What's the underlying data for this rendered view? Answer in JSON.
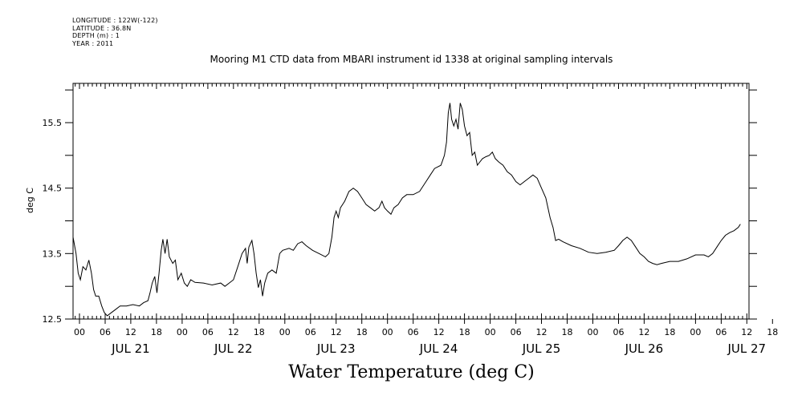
{
  "header": {
    "lines": [
      "LONGITUDE : 122W(-122)",
      "LATITUDE : 36.8N",
      "DEPTH (m) : 1",
      "YEAR : 2011"
    ]
  },
  "chart_data": {
    "type": "line",
    "title": "Mooring M1 CTD data from MBARI instrument id 1338 at original sampling intervals",
    "caption": "Water Temperature (deg C)",
    "ylabel": "deg C",
    "xlabel": "",
    "ylim": [
      12.5,
      16.1
    ],
    "yticks": [
      12.5,
      13.5,
      14.5,
      15.5
    ],
    "hour_ticks": [
      "00",
      "06",
      "12",
      "18",
      "00",
      "06",
      "12",
      "18",
      "00",
      "06",
      "12",
      "18",
      "00",
      "06",
      "12",
      "18",
      "00",
      "06",
      "12",
      "18",
      "00",
      "06",
      "12",
      "18",
      "00",
      "06",
      "12",
      "18"
    ],
    "day_labels": [
      "JUL 21",
      "JUL 22",
      "JUL 23",
      "JUL 24",
      "JUL 25",
      "JUL 26",
      "JUL 27"
    ],
    "grid": false,
    "series": [
      {
        "values_hours_since_jul21": [
          [
            -1.5,
            13.75
          ],
          [
            -0.8,
            13.5
          ],
          [
            -0.3,
            13.2
          ],
          [
            0.2,
            13.1
          ],
          [
            0.8,
            13.3
          ],
          [
            1.5,
            13.25
          ],
          [
            2.2,
            13.4
          ],
          [
            2.8,
            13.2
          ],
          [
            3.3,
            12.95
          ],
          [
            3.8,
            12.85
          ],
          [
            4.5,
            12.85
          ],
          [
            5.2,
            12.7
          ],
          [
            5.8,
            12.6
          ],
          [
            6.5,
            12.55
          ],
          [
            7.5,
            12.6
          ],
          [
            8.5,
            12.65
          ],
          [
            9.5,
            12.7
          ],
          [
            11,
            12.7
          ],
          [
            12.5,
            12.72
          ],
          [
            14,
            12.7
          ],
          [
            15,
            12.75
          ],
          [
            16,
            12.78
          ],
          [
            16.5,
            12.9
          ],
          [
            17,
            13.05
          ],
          [
            17.6,
            13.15
          ],
          [
            18.1,
            12.9
          ],
          [
            18.6,
            13.2
          ],
          [
            19.1,
            13.55
          ],
          [
            19.5,
            13.72
          ],
          [
            20,
            13.5
          ],
          [
            20.5,
            13.72
          ],
          [
            21,
            13.45
          ],
          [
            21.8,
            13.35
          ],
          [
            22.4,
            13.4
          ],
          [
            23,
            13.1
          ],
          [
            23.8,
            13.2
          ],
          [
            24.5,
            13.05
          ],
          [
            25.2,
            13.0
          ],
          [
            26,
            13.1
          ],
          [
            27,
            13.06
          ],
          [
            29,
            13.05
          ],
          [
            31,
            13.02
          ],
          [
            33,
            13.05
          ],
          [
            34,
            13.0
          ],
          [
            35,
            13.05
          ],
          [
            36,
            13.1
          ],
          [
            37,
            13.3
          ],
          [
            38,
            13.5
          ],
          [
            38.8,
            13.58
          ],
          [
            39.2,
            13.35
          ],
          [
            39.6,
            13.6
          ],
          [
            40.3,
            13.7
          ],
          [
            40.8,
            13.5
          ],
          [
            41.3,
            13.2
          ],
          [
            41.8,
            12.98
          ],
          [
            42.3,
            13.1
          ],
          [
            42.8,
            12.85
          ],
          [
            43.3,
            13.05
          ],
          [
            44,
            13.2
          ],
          [
            45,
            13.25
          ],
          [
            46,
            13.2
          ],
          [
            46.8,
            13.5
          ],
          [
            47.5,
            13.55
          ],
          [
            49,
            13.58
          ],
          [
            50,
            13.55
          ],
          [
            51,
            13.65
          ],
          [
            52,
            13.68
          ],
          [
            53,
            13.62
          ],
          [
            54.5,
            13.55
          ],
          [
            56,
            13.5
          ],
          [
            57.5,
            13.45
          ],
          [
            58.3,
            13.5
          ],
          [
            59,
            13.75
          ],
          [
            59.5,
            14.05
          ],
          [
            60,
            14.15
          ],
          [
            60.5,
            14.05
          ],
          [
            61,
            14.2
          ],
          [
            62,
            14.3
          ],
          [
            63,
            14.45
          ],
          [
            64,
            14.5
          ],
          [
            65,
            14.45
          ],
          [
            66,
            14.35
          ],
          [
            67,
            14.25
          ],
          [
            68,
            14.2
          ],
          [
            69,
            14.15
          ],
          [
            70,
            14.2
          ],
          [
            70.7,
            14.3
          ],
          [
            71.3,
            14.2
          ],
          [
            72,
            14.15
          ],
          [
            72.8,
            14.1
          ],
          [
            73.5,
            14.2
          ],
          [
            74.5,
            14.25
          ],
          [
            75.5,
            14.35
          ],
          [
            76.5,
            14.4
          ],
          [
            78,
            14.4
          ],
          [
            79.5,
            14.45
          ],
          [
            81,
            14.6
          ],
          [
            82,
            14.7
          ],
          [
            83,
            14.8
          ],
          [
            84.5,
            14.85
          ],
          [
            85.3,
            15.0
          ],
          [
            85.8,
            15.2
          ],
          [
            86.2,
            15.65
          ],
          [
            86.6,
            15.8
          ],
          [
            87,
            15.55
          ],
          [
            87.5,
            15.45
          ],
          [
            88,
            15.55
          ],
          [
            88.5,
            15.4
          ],
          [
            89,
            15.8
          ],
          [
            89.5,
            15.7
          ],
          [
            90,
            15.45
          ],
          [
            90.6,
            15.3
          ],
          [
            91.2,
            15.35
          ],
          [
            91.8,
            15.0
          ],
          [
            92.4,
            15.05
          ],
          [
            93,
            14.85
          ],
          [
            93.6,
            14.9
          ],
          [
            94.2,
            14.95
          ],
          [
            95,
            14.98
          ],
          [
            95.8,
            15.0
          ],
          [
            96.5,
            15.05
          ],
          [
            97.2,
            14.95
          ],
          [
            98,
            14.9
          ],
          [
            99,
            14.85
          ],
          [
            100,
            14.75
          ],
          [
            101,
            14.7
          ],
          [
            102,
            14.6
          ],
          [
            103,
            14.55
          ],
          [
            104,
            14.6
          ],
          [
            105,
            14.65
          ],
          [
            106,
            14.7
          ],
          [
            107,
            14.65
          ],
          [
            108,
            14.5
          ],
          [
            109,
            14.35
          ],
          [
            110,
            14.05
          ],
          [
            110.7,
            13.9
          ],
          [
            111.3,
            13.7
          ],
          [
            112,
            13.72
          ],
          [
            113,
            13.68
          ],
          [
            115,
            13.62
          ],
          [
            117,
            13.58
          ],
          [
            119,
            13.52
          ],
          [
            121,
            13.5
          ],
          [
            123,
            13.52
          ],
          [
            125,
            13.55
          ],
          [
            126,
            13.62
          ],
          [
            127,
            13.7
          ],
          [
            128,
            13.75
          ],
          [
            129,
            13.7
          ],
          [
            130,
            13.6
          ],
          [
            131,
            13.5
          ],
          [
            132,
            13.45
          ],
          [
            133,
            13.38
          ],
          [
            134,
            13.35
          ],
          [
            135,
            13.33
          ],
          [
            136,
            13.35
          ],
          [
            138,
            13.38
          ],
          [
            140,
            13.38
          ],
          [
            142,
            13.42
          ],
          [
            144,
            13.48
          ],
          [
            146,
            13.48
          ],
          [
            147,
            13.45
          ],
          [
            148,
            13.5
          ],
          [
            149,
            13.6
          ],
          [
            150,
            13.7
          ],
          [
            151,
            13.78
          ],
          [
            152,
            13.82
          ],
          [
            153,
            13.85
          ],
          [
            154,
            13.9
          ],
          [
            154.5,
            13.95
          ]
        ]
      }
    ]
  }
}
